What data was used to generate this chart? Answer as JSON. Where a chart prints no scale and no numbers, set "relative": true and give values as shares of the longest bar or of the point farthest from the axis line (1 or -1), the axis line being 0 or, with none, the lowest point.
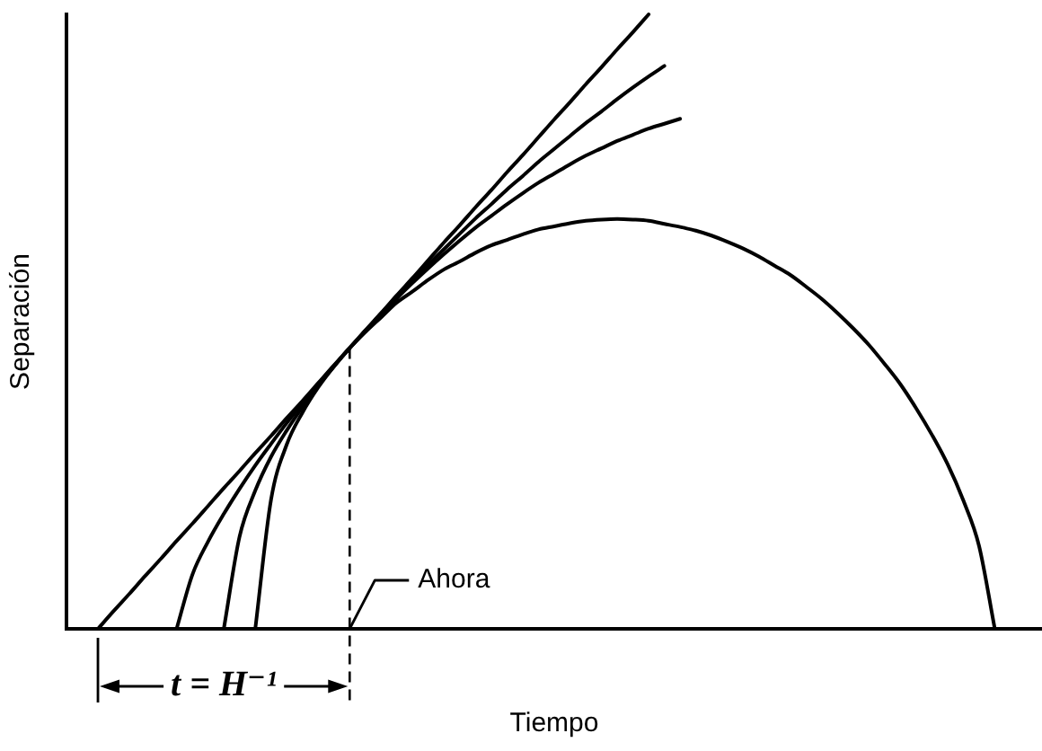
{
  "chart_data": {
    "type": "line",
    "xlabel": "Tiempo",
    "ylabel": "Separación",
    "relative": true,
    "tick_labels": false,
    "marker": "none",
    "line_style": "solid",
    "categories": [
      null,
      null,
      null,
      null,
      null,
      null,
      null,
      null,
      null,
      null,
      null,
      null,
      null,
      null,
      null,
      null,
      null,
      null,
      null,
      null,
      null,
      null,
      null,
      null,
      null,
      null,
      null,
      null,
      null,
      null,
      null,
      null,
      null,
      null,
      null,
      null,
      null,
      null,
      null,
      null,
      null,
      null,
      null,
      null,
      null,
      null,
      null,
      null,
      null,
      null,
      null,
      null,
      null,
      null,
      null,
      null,
      null,
      null,
      null,
      null,
      null,
      null,
      null
    ],
    "series": [
      {
        "color": "#000000",
        "values": [
          null,
          null,
          0,
          0.029,
          0.057,
          0.086,
          0.114,
          0.143,
          0.171,
          0.2,
          0.229,
          0.257,
          0.286,
          0.314,
          0.343,
          0.371,
          0.4,
          0.429,
          0.457,
          0.486,
          0.514,
          0.543,
          0.571,
          0.6,
          0.629,
          0.657,
          0.686,
          0.714,
          0.743,
          0.771,
          0.8,
          0.829,
          0.857,
          0.886,
          0.914,
          0.943,
          0.971,
          1,
          null,
          null,
          null,
          null,
          null,
          null,
          null,
          null,
          null,
          null,
          null,
          null,
          null,
          null,
          null,
          null,
          null,
          null,
          null,
          null,
          null,
          null,
          null,
          null,
          null
        ]
      },
      {
        "color": "#000000",
        "values": [
          null,
          null,
          null,
          null,
          null,
          null,
          null,
          0,
          0.088,
          0.142,
          0.187,
          0.228,
          0.266,
          0.301,
          0.335,
          0.367,
          0.398,
          0.428,
          0.457,
          0.485,
          0.513,
          0.54,
          0.567,
          0.593,
          0.618,
          0.643,
          0.668,
          0.691,
          0.715,
          0.737,
          0.76,
          0.781,
          0.802,
          0.823,
          0.842,
          0.862,
          0.881,
          0.899,
          0.916,
          null,
          null,
          null,
          null,
          null,
          null,
          null,
          null,
          null,
          null,
          null,
          null,
          null,
          null,
          null,
          null,
          null,
          null,
          null,
          null,
          null,
          null,
          null,
          null
        ]
      },
      {
        "color": "#000000",
        "values": [
          null,
          null,
          null,
          null,
          null,
          null,
          null,
          null,
          null,
          null,
          0,
          0.15,
          0.225,
          0.28,
          0.323,
          0.361,
          0.396,
          0.427,
          0.457,
          0.485,
          0.512,
          0.538,
          0.563,
          0.587,
          0.61,
          0.632,
          0.653,
          0.672,
          0.691,
          0.709,
          0.726,
          0.741,
          0.756,
          0.77,
          0.782,
          0.794,
          0.804,
          0.814,
          0.822,
          0.83,
          null,
          null,
          null,
          null,
          null,
          null,
          null,
          null,
          null,
          null,
          null,
          null,
          null,
          null,
          null,
          null,
          null,
          null,
          null,
          null,
          null,
          null,
          null
        ]
      },
      {
        "color": "#000000",
        "values": [
          null,
          null,
          null,
          null,
          null,
          null,
          null,
          null,
          null,
          null,
          null,
          null,
          0,
          0.21,
          0.3,
          0.352,
          0.393,
          0.427,
          0.457,
          0.483,
          0.507,
          0.531,
          0.549,
          0.568,
          0.585,
          0.598,
          0.612,
          0.624,
          0.633,
          0.642,
          0.65,
          0.655,
          0.66,
          0.664,
          0.666,
          0.667,
          0.666,
          0.664,
          0.659,
          0.654,
          0.648,
          0.64,
          0.63,
          0.619,
          0.606,
          0.591,
          0.576,
          0.557,
          0.537,
          0.514,
          0.489,
          0.462,
          0.431,
          0.398,
          0.359,
          0.316,
          0.268,
          0.209,
          0.135,
          0,
          null,
          null,
          null
        ]
      }
    ],
    "annotations": [
      "Ahora",
      "t = H⁻¹"
    ]
  }
}
